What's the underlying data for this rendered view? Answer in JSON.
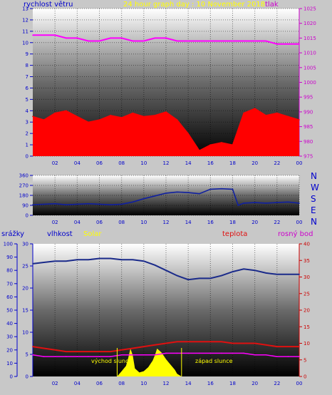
{
  "header": {
    "wind_speed_label": "rychlost větru",
    "title": "24 hour graph day : 10 November 2018",
    "pressure_label": "tlak"
  },
  "directions": [
    "N",
    "W",
    "S",
    "E",
    "N"
  ],
  "bottom_labels": {
    "precip": "srážky",
    "humidity": "vlhkost",
    "solar": "Solar",
    "temperature": "teplota",
    "dew_point": "rosný bod",
    "sunrise": "východ slunce",
    "sunset": "západ slunce"
  },
  "colors": {
    "wind_speed": "#ff0000",
    "wind_avg": "#0000ff",
    "wind_trend": "#c8a0a0",
    "pressure": "#ff00ff",
    "wind_dir": "#1020a0",
    "humidity": "#1a2a8a",
    "temperature": "#e01010",
    "dew_point": "#ff00ff",
    "solar": "#ffff00",
    "left_axis": "#0000cc",
    "right_axis": "#cc00cc",
    "temp_axis": "#cc0000"
  },
  "chart_data": [
    {
      "type": "line",
      "x_ticks": [
        "02",
        "04",
        "06",
        "08",
        "10",
        "12",
        "14",
        "16",
        "18",
        "20",
        "22",
        "00"
      ],
      "ylim_left": [
        0,
        13
      ],
      "y_ticks_left": [
        0,
        1,
        2,
        3,
        4,
        5,
        6,
        7,
        8,
        9,
        10,
        11,
        12,
        13
      ],
      "ylim_right": [
        975,
        1025
      ],
      "y_ticks_right": [
        975,
        980,
        985,
        990,
        995,
        1000,
        1005,
        1010,
        1015,
        1020,
        1025
      ],
      "series": [
        {
          "name": "rychlost větru",
          "axis": "left",
          "x": [
            0,
            1,
            2,
            3,
            4,
            5,
            6,
            7,
            8,
            9,
            10,
            11,
            12,
            13,
            14,
            15,
            16,
            17,
            18,
            19,
            20,
            21,
            22,
            23,
            24
          ],
          "values": [
            3.5,
            3.2,
            3.8,
            4.0,
            3.5,
            3.0,
            3.2,
            3.6,
            3.4,
            3.8,
            3.5,
            3.6,
            3.9,
            3.2,
            2.0,
            0.5,
            1.0,
            1.2,
            1.0,
            3.8,
            4.2,
            3.6,
            3.8,
            3.5,
            3.2
          ]
        },
        {
          "name": "tlak",
          "axis": "right",
          "x": [
            0,
            1,
            2,
            3,
            4,
            5,
            6,
            7,
            8,
            9,
            10,
            11,
            12,
            13,
            14,
            15,
            16,
            17,
            18,
            19,
            20,
            21,
            22,
            23,
            24
          ],
          "values": [
            1016,
            1016,
            1016,
            1015,
            1015,
            1014,
            1014,
            1015,
            1015,
            1014,
            1014,
            1015,
            1015,
            1014,
            1014,
            1014,
            1014,
            1014,
            1014,
            1014,
            1014,
            1014,
            1013,
            1013,
            1013
          ]
        }
      ]
    },
    {
      "type": "line",
      "x_ticks": [
        "02",
        "04",
        "06",
        "08",
        "10",
        "12",
        "14",
        "16",
        "18",
        "20",
        "22",
        "00"
      ],
      "ylim": [
        0,
        360
      ],
      "y_ticks": [
        0,
        90,
        180,
        270,
        360
      ],
      "series": [
        {
          "x": [
            0,
            1,
            2,
            3,
            4,
            5,
            6,
            7,
            8,
            9,
            10,
            11,
            12,
            13,
            14,
            15,
            16,
            17,
            18,
            18.5,
            19,
            20,
            21,
            22,
            23,
            24
          ],
          "values": [
            95,
            100,
            105,
            95,
            100,
            105,
            100,
            95,
            100,
            120,
            150,
            175,
            200,
            210,
            205,
            195,
            235,
            240,
            235,
            90,
            110,
            115,
            110,
            115,
            120,
            110
          ]
        }
      ]
    },
    {
      "type": "line",
      "x_ticks": [
        "02",
        "04",
        "06",
        "08",
        "10",
        "12",
        "14",
        "16",
        "18",
        "20",
        "22",
        "00"
      ],
      "ylim_left_outer": [
        0,
        100
      ],
      "y_ticks_left_outer": [
        0,
        10,
        20,
        30,
        40,
        50,
        60,
        70,
        80,
        90,
        100
      ],
      "ylim_left_inner": [
        0,
        30
      ],
      "y_ticks_left_inner": [
        0,
        5,
        10,
        15,
        20,
        25,
        30
      ],
      "ylim_right": [
        0,
        40
      ],
      "y_ticks_right": [
        0,
        5,
        10,
        15,
        20,
        25,
        30,
        35,
        40
      ],
      "series": [
        {
          "name": "vlhkost",
          "axis": "left_outer",
          "x": [
            0,
            1,
            2,
            3,
            4,
            5,
            6,
            7,
            8,
            9,
            10,
            11,
            12,
            13,
            14,
            15,
            16,
            17,
            18,
            19,
            20,
            21,
            22,
            23,
            24
          ],
          "values": [
            85,
            86,
            87,
            87,
            88,
            88,
            89,
            89,
            88,
            88,
            87,
            84,
            80,
            76,
            73,
            74,
            74,
            76,
            79,
            81,
            80,
            78,
            77,
            77,
            77
          ]
        },
        {
          "name": "Solar",
          "axis": "left_outer",
          "x": [
            7.6,
            8.0,
            8.4,
            8.6,
            8.8,
            9.0,
            9.2,
            9.6,
            10.0,
            10.4,
            10.8,
            11.0,
            11.2,
            11.6,
            12.0,
            12.4,
            12.8,
            13.0,
            13.4
          ],
          "values": [
            0,
            4,
            8,
            14,
            21,
            16,
            6,
            3,
            4,
            7,
            12,
            16,
            21,
            18,
            13,
            9,
            5,
            2,
            0
          ]
        },
        {
          "name": "teplota",
          "axis": "right",
          "x": [
            0,
            1,
            2,
            3,
            4,
            5,
            6,
            7,
            8,
            9,
            10,
            11,
            12,
            13,
            14,
            15,
            16,
            17,
            18,
            19,
            20,
            21,
            22,
            23,
            24
          ],
          "values": [
            9,
            8.5,
            8,
            7.5,
            7.5,
            7.5,
            7.5,
            7.5,
            8,
            8.5,
            9,
            9.5,
            10,
            10.5,
            10.5,
            10.5,
            10.5,
            10.5,
            10,
            10,
            10,
            9.5,
            9,
            9,
            9
          ]
        },
        {
          "name": "rosný bod",
          "axis": "right",
          "x": [
            0,
            1,
            2,
            3,
            4,
            5,
            6,
            7,
            8,
            9,
            10,
            11,
            12,
            13,
            14,
            15,
            16,
            17,
            18,
            19,
            20,
            21,
            22,
            23,
            24
          ],
          "values": [
            6.5,
            6,
            6,
            6,
            6,
            6,
            6,
            6,
            6.5,
            6.5,
            6.5,
            6.5,
            7,
            7,
            7,
            7,
            7,
            7,
            7,
            7,
            6.5,
            6.5,
            6,
            6,
            6
          ]
        }
      ]
    }
  ]
}
